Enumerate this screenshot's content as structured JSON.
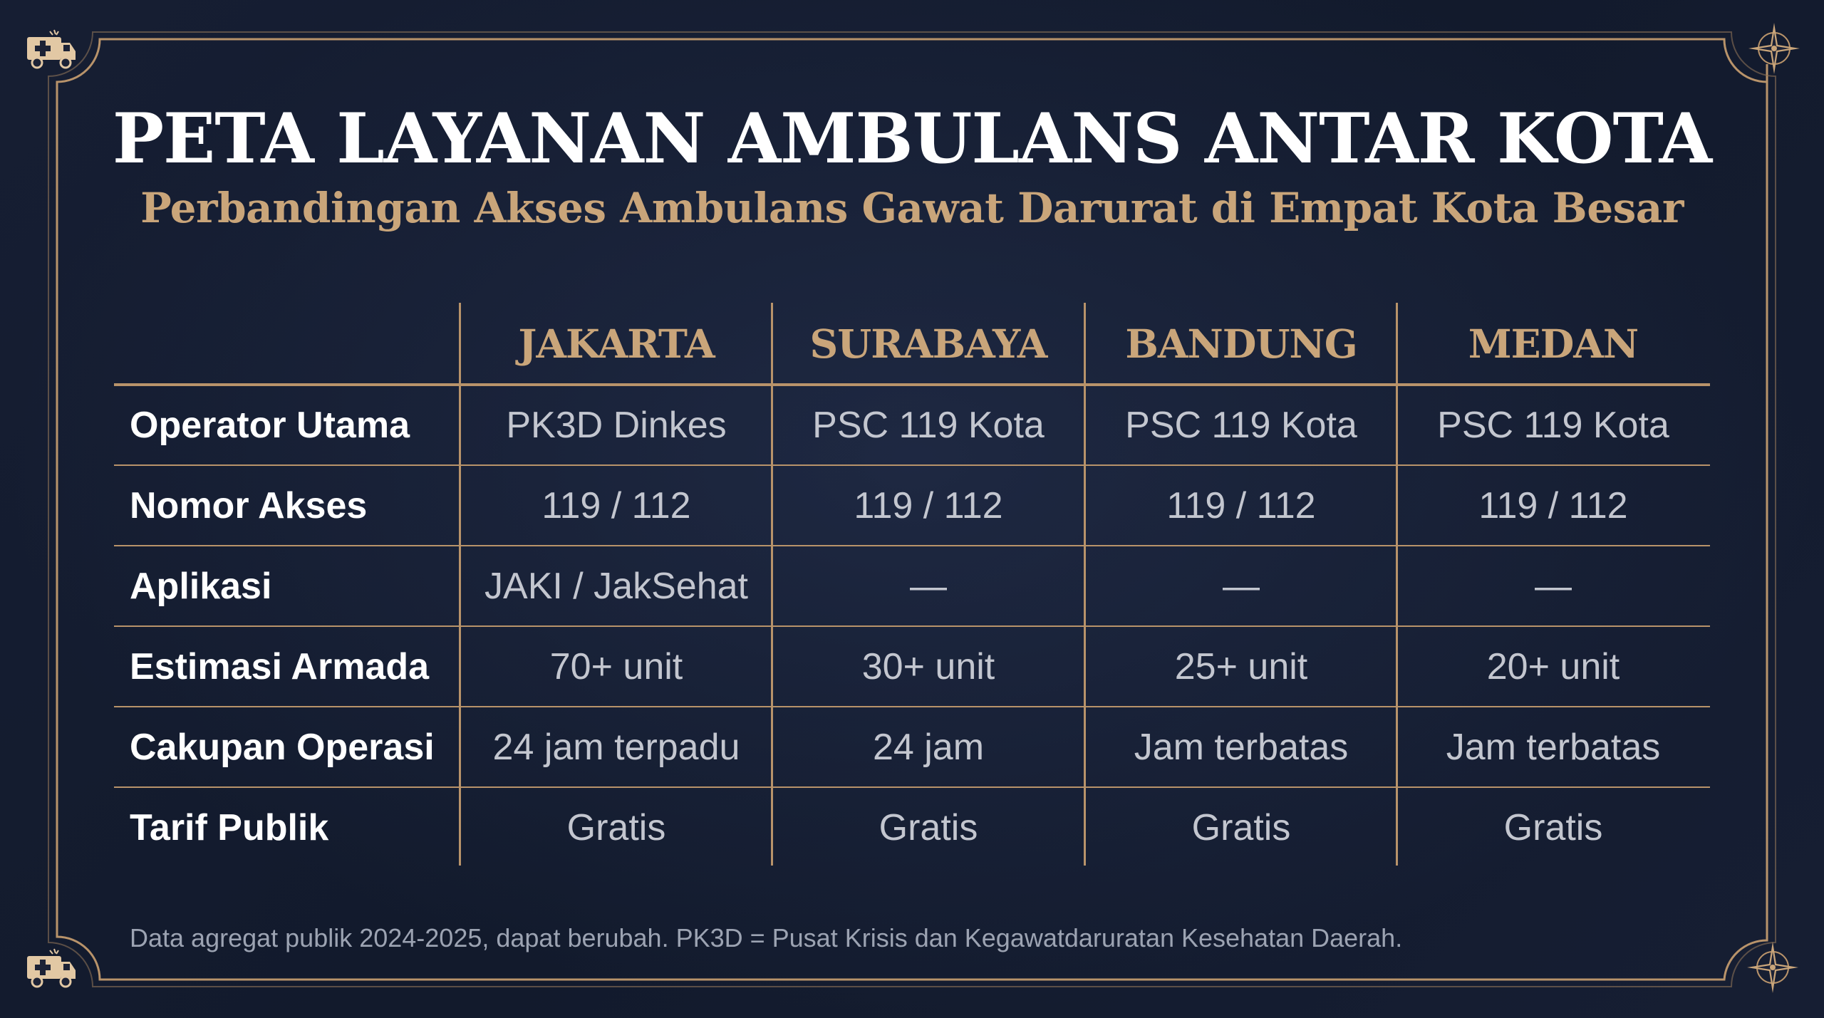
{
  "title": "PETA LAYANAN AMBULANS ANTAR KOTA",
  "subtitle": "Perbandingan Akses Ambulans Gawat Darurat di Empat Kota Besar",
  "columns": [
    "JAKARTA",
    "SURABAYA",
    "BANDUNG",
    "MEDAN"
  ],
  "rows": [
    {
      "label": "Operator Utama",
      "values": [
        "PK3D Dinkes",
        "PSC 119 Kota",
        "PSC 119 Kota",
        "PSC 119 Kota"
      ]
    },
    {
      "label": "Nomor Akses",
      "values": [
        "119 / 112",
        "119 / 112",
        "119 / 112",
        "119 / 112"
      ]
    },
    {
      "label": "Aplikasi",
      "values": [
        "JAKI / JakSehat",
        "—",
        "—",
        "—"
      ]
    },
    {
      "label": "Estimasi Armada",
      "values": [
        "70+ unit",
        "30+ unit",
        "25+ unit",
        "20+ unit"
      ]
    },
    {
      "label": "Cakupan Operasi",
      "values": [
        "24 jam terpadu",
        "24 jam",
        "Jam terbatas",
        "Jam terbatas"
      ]
    },
    {
      "label": "Tarif Publik",
      "values": [
        "Gratis",
        "Gratis",
        "Gratis",
        "Gratis"
      ]
    }
  ],
  "footnote": "Data agregat publik 2024-2025, dapat berubah. PK3D = Pusat Krisis dan Kegawatdaruratan Kesehatan Daerah.",
  "icons": {
    "top_left": "ambulance-icon",
    "bottom_left": "ambulance-icon",
    "top_right": "compass-rose-icon",
    "bottom_right": "compass-rose-icon"
  },
  "colors": {
    "background": "#141b2e",
    "accent_gold": "#c9a57a",
    "line_gold": "#b8936a",
    "title": "#ffffff",
    "cell_text": "#c3c6cf"
  }
}
